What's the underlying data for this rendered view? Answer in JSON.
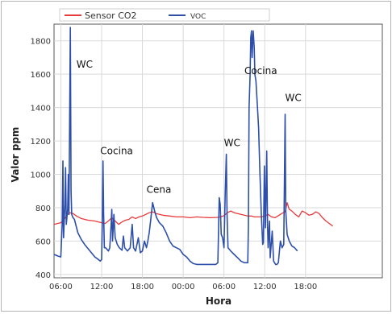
{
  "chart_data": {
    "type": "line",
    "title": "",
    "xlabel": "Hora",
    "ylabel": "Valor ppm",
    "ylim": [
      380,
      1900
    ],
    "xlim": [
      5.0,
      53.3
    ],
    "grid": true,
    "legend": {
      "placement": "top"
    },
    "x_ticks": [
      {
        "x": 6,
        "label": "06:00"
      },
      {
        "x": 12,
        "label": "12:00"
      },
      {
        "x": 18,
        "label": "18:00"
      },
      {
        "x": 24,
        "label": "00:00"
      },
      {
        "x": 30,
        "label": "06:00"
      },
      {
        "x": 36,
        "label": "12:00"
      },
      {
        "x": 42,
        "label": "18:00"
      }
    ],
    "y_ticks": [
      400,
      600,
      800,
      1000,
      1200,
      1400,
      1600,
      1800
    ],
    "series": [
      {
        "name": "Sensor CO2",
        "color": "#e8393a",
        "points": [
          [
            5.0,
            700
          ],
          [
            5.5,
            705
          ],
          [
            6.0,
            710
          ],
          [
            6.5,
            730
          ],
          [
            7.0,
            760
          ],
          [
            7.3,
            770
          ],
          [
            7.8,
            765
          ],
          [
            8.3,
            750
          ],
          [
            9.0,
            735
          ],
          [
            10.0,
            725
          ],
          [
            11.0,
            720
          ],
          [
            11.5,
            715
          ],
          [
            12.0,
            710
          ],
          [
            12.5,
            705
          ],
          [
            13.0,
            720
          ],
          [
            13.5,
            740
          ],
          [
            14.0,
            720
          ],
          [
            14.5,
            700
          ],
          [
            15.0,
            715
          ],
          [
            15.5,
            725
          ],
          [
            16.0,
            730
          ],
          [
            16.5,
            745
          ],
          [
            17.0,
            735
          ],
          [
            17.5,
            745
          ],
          [
            18.0,
            750
          ],
          [
            18.5,
            760
          ],
          [
            19.0,
            770
          ],
          [
            19.5,
            775
          ],
          [
            20.0,
            765
          ],
          [
            21.0,
            755
          ],
          [
            22.0,
            750
          ],
          [
            23.0,
            745
          ],
          [
            24.0,
            745
          ],
          [
            25.0,
            740
          ],
          [
            26.0,
            745
          ],
          [
            27.0,
            742
          ],
          [
            28.0,
            740
          ],
          [
            29.0,
            742
          ],
          [
            29.5,
            745
          ],
          [
            30.0,
            752
          ],
          [
            30.5,
            770
          ],
          [
            31.0,
            780
          ],
          [
            31.5,
            770
          ],
          [
            32.0,
            765
          ],
          [
            32.5,
            760
          ],
          [
            33.0,
            755
          ],
          [
            33.5,
            750
          ],
          [
            34.0,
            750
          ],
          [
            34.5,
            745
          ],
          [
            35.0,
            745
          ],
          [
            35.5,
            745
          ],
          [
            36.0,
            750
          ],
          [
            36.5,
            760
          ],
          [
            37.0,
            745
          ],
          [
            37.5,
            740
          ],
          [
            38.0,
            752
          ],
          [
            38.5,
            765
          ],
          [
            39.0,
            775
          ],
          [
            39.3,
            830
          ],
          [
            39.6,
            790
          ],
          [
            40.0,
            780
          ],
          [
            40.5,
            760
          ],
          [
            41.0,
            745
          ],
          [
            41.5,
            780
          ],
          [
            42.0,
            770
          ],
          [
            42.5,
            755
          ],
          [
            43.0,
            760
          ],
          [
            43.5,
            775
          ],
          [
            44.0,
            765
          ],
          [
            44.5,
            740
          ],
          [
            45.0,
            720
          ],
          [
            45.5,
            705
          ],
          [
            46.0,
            690
          ]
        ]
      },
      {
        "name": "VOC",
        "color": "#2d4faa",
        "points": [
          [
            5.0,
            520
          ],
          [
            5.6,
            510
          ],
          [
            6.0,
            505
          ],
          [
            6.2,
            700
          ],
          [
            6.3,
            1080
          ],
          [
            6.4,
            620
          ],
          [
            6.6,
            820
          ],
          [
            6.7,
            1040
          ],
          [
            6.8,
            700
          ],
          [
            7.0,
            790
          ],
          [
            7.1,
            1000
          ],
          [
            7.2,
            760
          ],
          [
            7.4,
            1880
          ],
          [
            7.5,
            900
          ],
          [
            7.6,
            760
          ],
          [
            7.8,
            740
          ],
          [
            8.0,
            730
          ],
          [
            8.5,
            650
          ],
          [
            9.0,
            610
          ],
          [
            9.5,
            580
          ],
          [
            10.0,
            555
          ],
          [
            10.5,
            530
          ],
          [
            11.0,
            505
          ],
          [
            11.5,
            490
          ],
          [
            11.8,
            480
          ],
          [
            12.0,
            490
          ],
          [
            12.1,
            700
          ],
          [
            12.2,
            1080
          ],
          [
            12.3,
            760
          ],
          [
            12.4,
            560
          ],
          [
            12.6,
            560
          ],
          [
            13.0,
            540
          ],
          [
            13.2,
            560
          ],
          [
            13.4,
            700
          ],
          [
            13.5,
            790
          ],
          [
            13.6,
            600
          ],
          [
            13.8,
            760
          ],
          [
            14.0,
            620
          ],
          [
            14.3,
            580
          ],
          [
            14.6,
            560
          ],
          [
            15.0,
            545
          ],
          [
            15.2,
            630
          ],
          [
            15.4,
            560
          ],
          [
            15.8,
            540
          ],
          [
            16.2,
            560
          ],
          [
            16.5,
            700
          ],
          [
            16.7,
            560
          ],
          [
            17.0,
            540
          ],
          [
            17.4,
            620
          ],
          [
            17.7,
            530
          ],
          [
            18.0,
            540
          ],
          [
            18.3,
            600
          ],
          [
            18.6,
            560
          ],
          [
            18.8,
            600
          ],
          [
            19.0,
            650
          ],
          [
            19.2,
            720
          ],
          [
            19.5,
            830
          ],
          [
            19.8,
            780
          ],
          [
            20.1,
            740
          ],
          [
            20.5,
            710
          ],
          [
            21.0,
            690
          ],
          [
            21.5,
            650
          ],
          [
            22.0,
            600
          ],
          [
            22.5,
            570
          ],
          [
            23.0,
            560
          ],
          [
            23.5,
            550
          ],
          [
            24.0,
            520
          ],
          [
            24.5,
            505
          ],
          [
            25.0,
            480
          ],
          [
            25.5,
            465
          ],
          [
            26.0,
            460
          ],
          [
            27.0,
            460
          ],
          [
            28.0,
            460
          ],
          [
            28.8,
            460
          ],
          [
            29.1,
            470
          ],
          [
            29.3,
            860
          ],
          [
            29.45,
            820
          ],
          [
            29.6,
            640
          ],
          [
            29.8,
            620
          ],
          [
            30.0,
            560
          ],
          [
            30.2,
            900
          ],
          [
            30.35,
            1120
          ],
          [
            30.45,
            760
          ],
          [
            30.6,
            560
          ],
          [
            31.0,
            540
          ],
          [
            31.5,
            520
          ],
          [
            32.0,
            500
          ],
          [
            32.5,
            480
          ],
          [
            33.0,
            470
          ],
          [
            33.3,
            470
          ],
          [
            33.5,
            470
          ],
          [
            33.6,
            700
          ],
          [
            33.7,
            1400
          ],
          [
            33.85,
            1600
          ],
          [
            33.95,
            1820
          ],
          [
            34.05,
            1860
          ],
          [
            34.15,
            1700
          ],
          [
            34.3,
            1860
          ],
          [
            34.45,
            1760
          ],
          [
            34.55,
            1600
          ],
          [
            34.7,
            1560
          ],
          [
            34.9,
            1420
          ],
          [
            35.1,
            1280
          ],
          [
            35.3,
            1000
          ],
          [
            35.5,
            760
          ],
          [
            35.7,
            580
          ],
          [
            35.8,
            590
          ],
          [
            35.95,
            1050
          ],
          [
            36.1,
            680
          ],
          [
            36.3,
            1140
          ],
          [
            36.4,
            720
          ],
          [
            36.5,
            560
          ],
          [
            36.7,
            720
          ],
          [
            36.8,
            500
          ],
          [
            37.1,
            660
          ],
          [
            37.3,
            480
          ],
          [
            37.6,
            460
          ],
          [
            37.8,
            460
          ],
          [
            38.0,
            470
          ],
          [
            38.3,
            600
          ],
          [
            38.55,
            560
          ],
          [
            38.8,
            580
          ],
          [
            39.0,
            1360
          ],
          [
            39.1,
            780
          ],
          [
            39.3,
            640
          ],
          [
            39.6,
            600
          ],
          [
            40.0,
            570
          ],
          [
            40.4,
            560
          ],
          [
            40.8,
            540
          ]
        ]
      }
    ],
    "annotations": [
      {
        "text": "WC",
        "x": 8.3,
        "y": 1640
      },
      {
        "text": "Cocina",
        "x": 11.8,
        "y": 1120
      },
      {
        "text": "Cena",
        "x": 18.6,
        "y": 890
      },
      {
        "text": "WC",
        "x": 30.0,
        "y": 1170
      },
      {
        "text": "Cocina",
        "x": 33.0,
        "y": 1600
      },
      {
        "text": "WC",
        "x": 39.0,
        "y": 1440
      }
    ]
  }
}
